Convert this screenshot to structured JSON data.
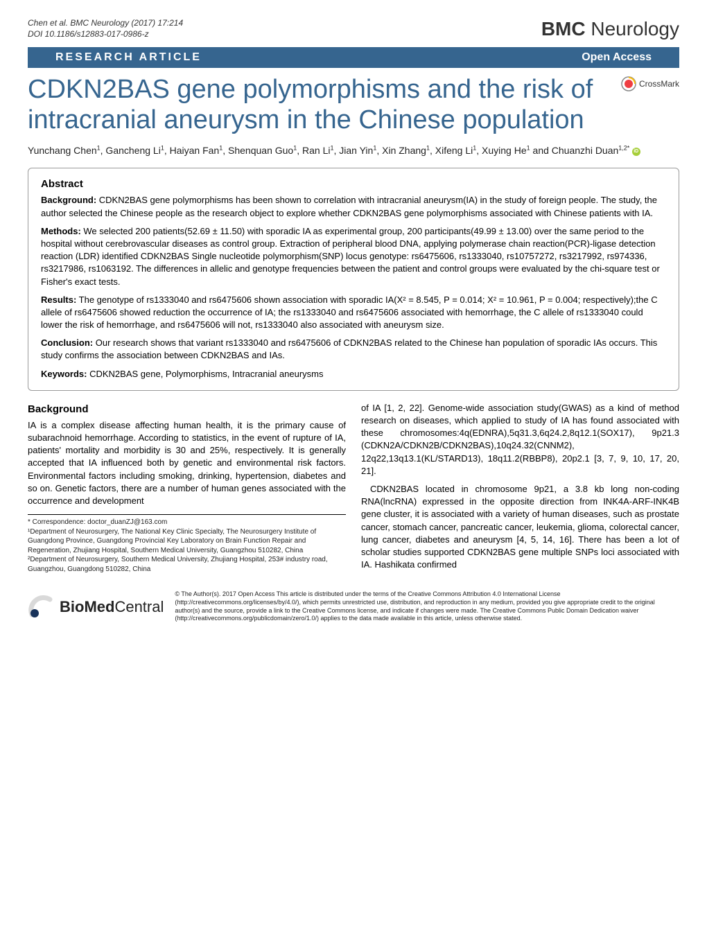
{
  "header": {
    "citation_line1": "Chen et al. BMC Neurology  (2017) 17:214",
    "citation_line2": "DOI 10.1186/s12883-017-0986-z",
    "journal_prefix": "BMC",
    "journal_name": "Neurology"
  },
  "article_type_bar": {
    "type_label": "RESEARCH ARTICLE",
    "open_access_label": "Open Access",
    "bar_bg": "#36658f",
    "bar_fg": "#ffffff"
  },
  "title": "CDKN2BAS gene polymorphisms and the risk of intracranial aneurysm in the Chinese population",
  "crossmark_label": "CrossMark",
  "authors_html": "Yunchang Chen<sup>1</sup>, Gancheng Li<sup>1</sup>, Haiyan Fan<sup>1</sup>, Shenquan Guo<sup>1</sup>, Ran Li<sup>1</sup>, Jian Yin<sup>1</sup>, Xin Zhang<sup>1</sup>, Xifeng Li<sup>1</sup>, Xuying He<sup>1</sup> and Chuanzhi Duan<sup>1,2*</sup>",
  "abstract": {
    "heading": "Abstract",
    "background_label": "Background:",
    "background_text": " CDKN2BAS gene polymorphisms has been shown to correlation with intracranial aneurysm(IA) in the study of foreign people. The study, the author selected the Chinese people as the research object to explore whether CDKN2BAS gene polymorphisms associated with Chinese patients with IA.",
    "methods_label": "Methods:",
    "methods_text": " We selected 200 patients(52.69 ± 11.50) with sporadic IA as experimental group, 200 participants(49.99 ± 13.00) over the same period to the hospital without cerebrovascular diseases as control group. Extraction of peripheral blood DNA, applying polymerase chain reaction(PCR)-ligase detection reaction (LDR) identified CDKN2BAS Single nucleotide polymorphism(SNP) locus genotype: rs6475606, rs1333040, rs10757272, rs3217992, rs974336, rs3217986, rs1063192. The differences in allelic and genotype frequencies between the patient and control groups were evaluated by the chi-square test or Fisher's exact tests.",
    "results_label": "Results:",
    "results_text": " The genotype of rs1333040 and rs6475606 shown association with sporadic IA(X² = 8.545, P = 0.014; X² = 10.961, P = 0.004; respectively);the C allele of rs6475606 showed reduction the occurrence of IA; the rs1333040 and rs6475606 associated with hemorrhage, the C allele of rs1333040 could lower the risk of hemorrhage, and rs6475606 will not, rs1333040 also associated with aneurysm size.",
    "conclusion_label": "Conclusion:",
    "conclusion_text": " Our research shows that variant rs1333040 and rs6475606 of CDKN2BAS related to the Chinese han population of sporadic IAs occurs. This study confirms the association between CDKN2BAS and IAs.",
    "keywords_label": "Keywords:",
    "keywords_text": " CDKN2BAS gene, Polymorphisms, Intracranial aneurysms"
  },
  "body": {
    "background_heading": "Background",
    "left_col": "IA is a complex disease affecting human health, it is the primary cause of subarachnoid hemorrhage. According to statistics, in the event of rupture of IA, patients' mortality and morbidity is 30 and 25%, respectively. It is generally accepted that IA influenced both by genetic and environmental risk factors. Environmental factors including smoking, drinking, hypertension, diabetes and so on. Genetic factors, there are a number of human genes associated with the occurrence and development",
    "right_col_p1": "of IA [1, 2, 22]. Genome-wide association study(GWAS) as a kind of method research on diseases, which applied to study of IA has found associated with these chromosomes:4q(EDNRA),5q31.3,6q24.2,8q12.1(SOX17), 9p21.3 (CDKN2A/CDKN2B/CDKN2BAS),10q24.32(CNNM2), 12q22,13q13.1(KL/STARD13), 18q11.2(RBBP8), 20p2.1 [3, 7, 9, 10, 17, 20, 21].",
    "right_col_p2": "CDKN2BAS located in chromosome 9p21, a 3.8 kb long non-coding RNA(lncRNA) expressed in the opposite direction from INK4A-ARF-INK4B gene cluster, it is associated with a variety of human diseases, such as prostate cancer, stomach cancer, pancreatic cancer, leukemia, glioma, colorectal cancer, lung cancer, diabetes and aneurysm [4, 5, 14, 16]. There has been a lot of scholar studies supported CDKN2BAS gene multiple SNPs loci associated with IA. Hashikata confirmed"
  },
  "footnotes": {
    "correspondence": "* Correspondence: doctor_duanZJ@163.com",
    "affil1": "¹Department of Neurosurgery, The National Key Clinic Specialty, The Neurosurgery Institute of Guangdong Province, Guangdong Provincial Key Laboratory on Brain Function Repair and Regeneration, Zhujiang Hospital, Southern Medical University, Guangzhou 510282, China",
    "affil2": "²Department of Neurosurgery, Southern Medical University, Zhujiang Hospital, 253# industry road, Guangzhou, Guangdong 510282, China"
  },
  "footer": {
    "bmc_prefix": "BioMed",
    "bmc_suffix": " Central",
    "license": "© The Author(s). 2017 Open Access This article is distributed under the terms of the Creative Commons Attribution 4.0 International License (http://creativecommons.org/licenses/by/4.0/), which permits unrestricted use, distribution, and reproduction in any medium, provided you give appropriate credit to the original author(s) and the source, provide a link to the Creative Commons license, and indicate if changes were made. The Creative Commons Public Domain Dedication waiver (http://creativecommons.org/publicdomain/zero/1.0/) applies to the data made available in this article, unless otherwise stated."
  },
  "colors": {
    "brand_blue": "#36658f",
    "crossmark_red": "#ef3e42",
    "crossmark_yellow": "#ffc20e",
    "orcid_green": "#a6ce39",
    "bmc_blue": "#18325a",
    "bmc_arc": "#d9d9d9"
  }
}
